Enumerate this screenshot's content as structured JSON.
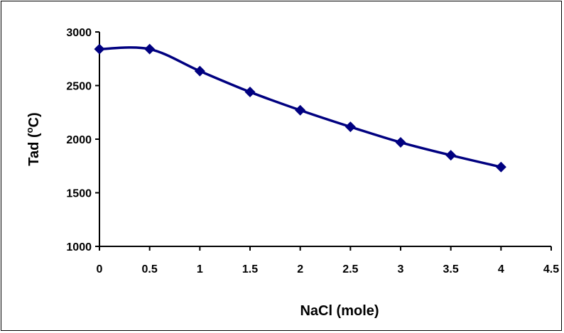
{
  "chart_data": {
    "type": "line",
    "title": "",
    "xlabel": "NaCl (mole)",
    "ylabel_main": "Tad (",
    "ylabel_sup": "o",
    "ylabel_rest": "C)",
    "x": [
      0,
      0.5,
      1,
      1.5,
      2,
      2.5,
      3,
      3.5,
      4
    ],
    "series": [
      {
        "values": [
          2840,
          2840,
          2635,
          2440,
          2270,
          2115,
          1970,
          1850,
          1740
        ],
        "color": "#000080"
      }
    ],
    "xlim": [
      0,
      4.5
    ],
    "ylim": [
      1000,
      3000
    ],
    "x_ticks": [
      "0",
      "0.5",
      "1",
      "1.5",
      "2",
      "2.5",
      "3",
      "3.5",
      "4",
      "4.5"
    ],
    "y_ticks": [
      "3000",
      "2500",
      "2000",
      "1500",
      "1000"
    ],
    "grid": false,
    "legend": "none"
  }
}
